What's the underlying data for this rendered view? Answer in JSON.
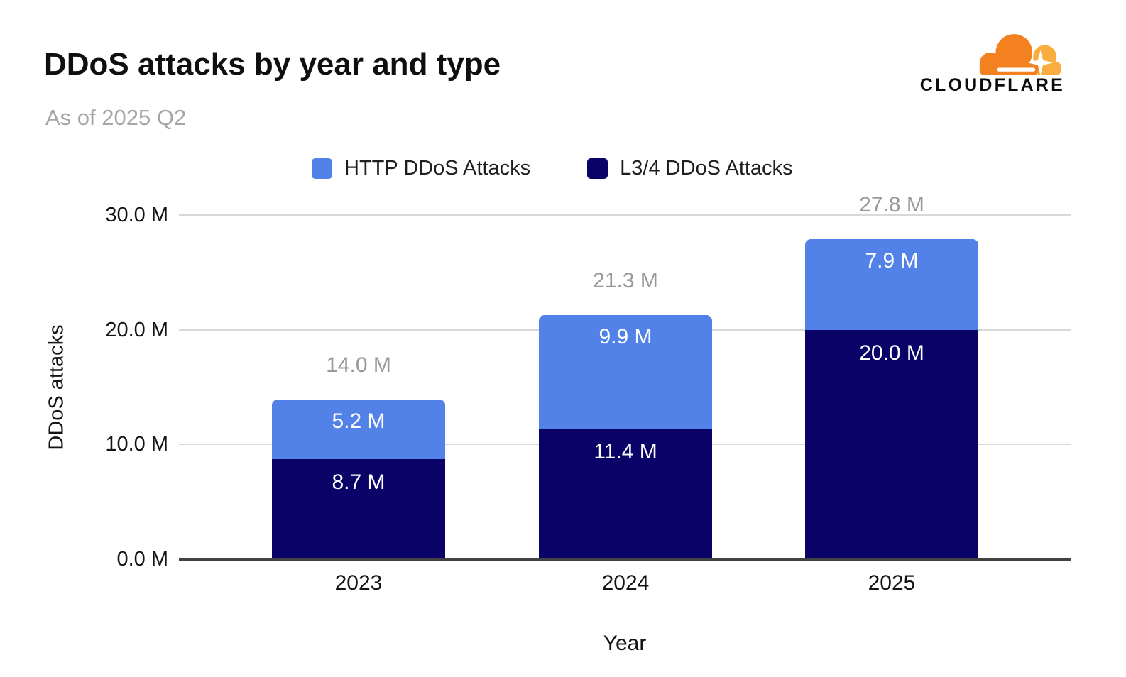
{
  "page": {
    "background": "#FFFFFF"
  },
  "header": {
    "title": "DDoS attacks by year and type",
    "subtitle": "As of 2025 Q2"
  },
  "branding": {
    "logo_text": "CLOUDFLARE",
    "cloud_color": "#F48120",
    "cloud_accent_color": "#FAAD3F",
    "wordmark_color": "#0C0C0C"
  },
  "chart_data": {
    "type": "bar",
    "stacked": true,
    "stack_order_note": "series[0] is the top segment of each bar, series[1] is the bottom segment",
    "title": "DDoS attacks by year and type",
    "subtitle": "As of 2025 Q2",
    "xlabel": "Year",
    "ylabel": "DDoS attacks",
    "categories": [
      "2023",
      "2024",
      "2025"
    ],
    "series": [
      {
        "name": "HTTP DDoS Attacks",
        "color": "#5282E8",
        "values": [
          5.2,
          9.9,
          7.9
        ],
        "value_labels": [
          "5.2 M",
          "9.9 M",
          "7.9 M"
        ]
      },
      {
        "name": "L3/4 DDoS Attacks",
        "color": "#0A0266",
        "values": [
          8.7,
          11.4,
          20.0
        ],
        "value_labels": [
          "8.7 M",
          "11.4 M",
          "20.0 M"
        ]
      }
    ],
    "totals": [
      14.0,
      21.3,
      27.8
    ],
    "total_labels": [
      "14.0 M",
      "21.3 M",
      "27.8 M"
    ],
    "y_ticks": [
      {
        "value": 0,
        "label": "0.0 M"
      },
      {
        "value": 10,
        "label": "10.0 M"
      },
      {
        "value": 20,
        "label": "20.0 M"
      },
      {
        "value": 30,
        "label": "30.0 M"
      }
    ],
    "ylim": [
      0,
      30
    ],
    "unit": "M",
    "grid": true,
    "legend_position": "top",
    "colors": {
      "grid": "#D9D9D9",
      "axis": "#424242",
      "total_label": "#999999",
      "segment_label": "#FFFFFF",
      "tick_label": "#141414"
    }
  }
}
